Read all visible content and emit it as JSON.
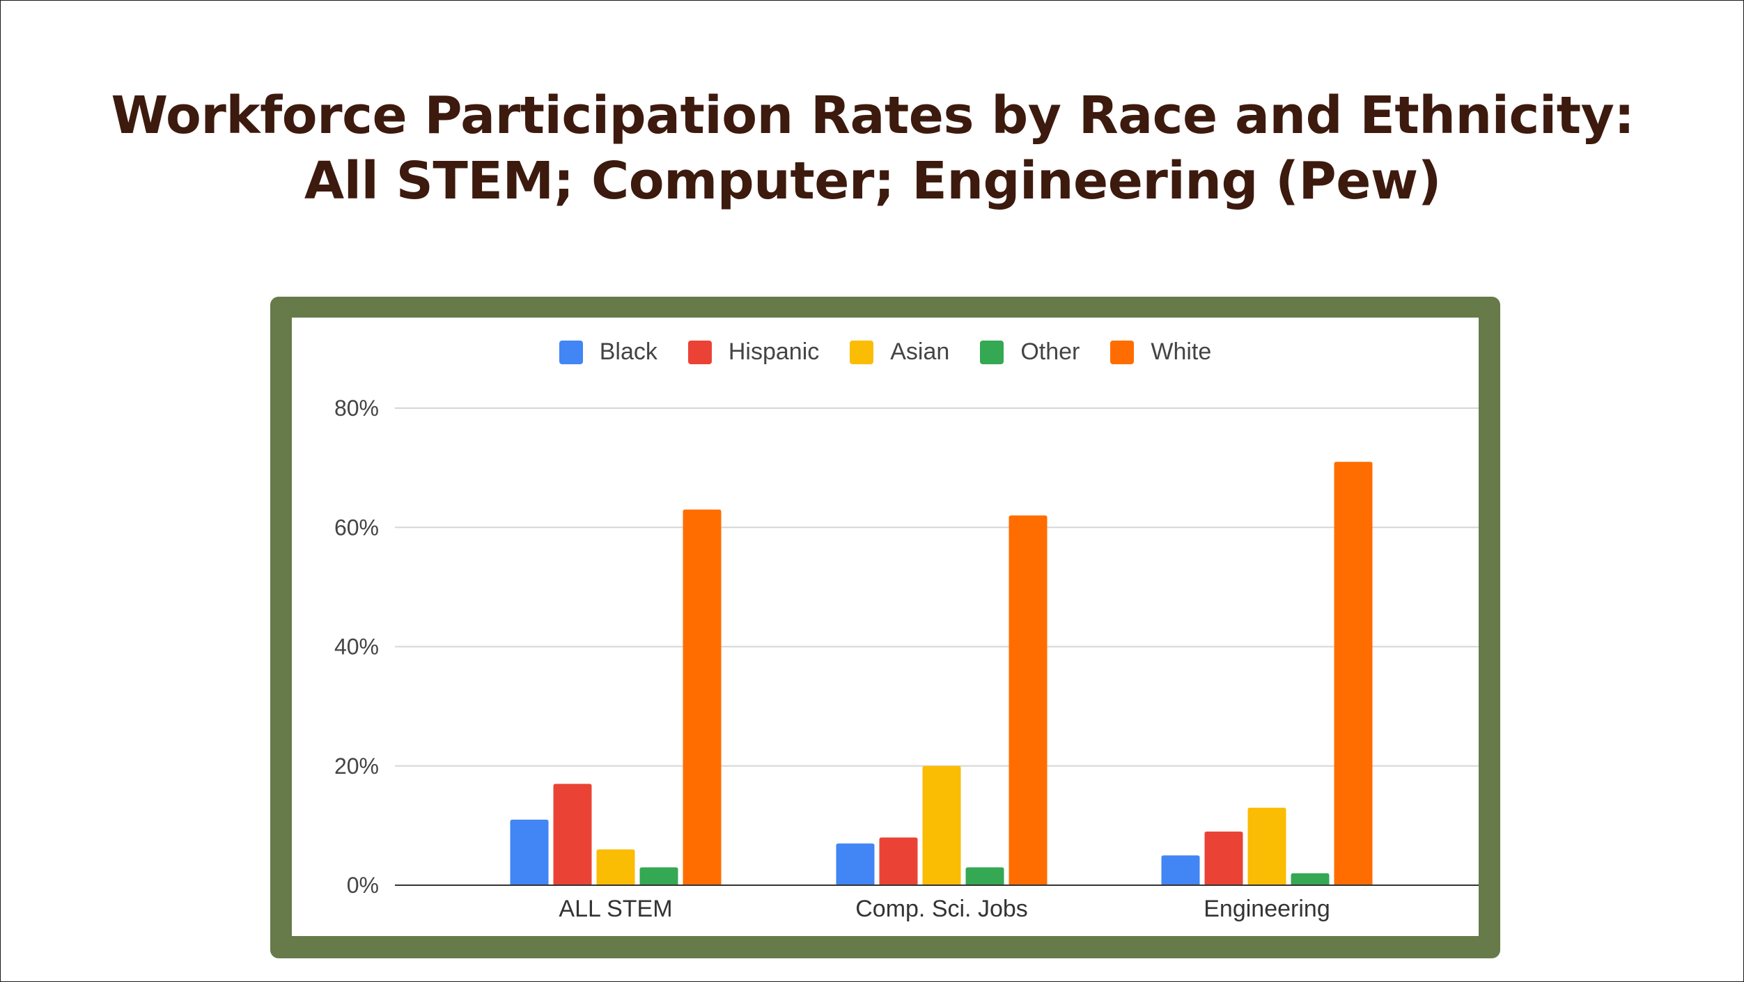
{
  "slide": {
    "title": "Workforce Participation Rates by Race and Ethnicity: All STEM; Computer; Engineering (Pew)"
  },
  "chart_data": {
    "type": "bar",
    "categories": [
      "ALL STEM",
      "Comp. Sci. Jobs",
      "Engineering"
    ],
    "series": [
      {
        "name": "Black",
        "color": "#4285f4",
        "values": [
          11,
          7,
          5
        ]
      },
      {
        "name": "Hispanic",
        "color": "#ea4335",
        "values": [
          17,
          8,
          9
        ]
      },
      {
        "name": "Asian",
        "color": "#fbbc04",
        "values": [
          6,
          20,
          13
        ]
      },
      {
        "name": "Other",
        "color": "#34a853",
        "values": [
          3,
          3,
          2
        ]
      },
      {
        "name": "White",
        "color": "#ff6d01",
        "values": [
          63,
          62,
          71
        ]
      }
    ],
    "y_ticks": [
      "0%",
      "20%",
      "40%",
      "60%",
      "80%"
    ],
    "ylim": [
      0,
      80
    ],
    "grid": true,
    "legend_position": "top-center"
  }
}
